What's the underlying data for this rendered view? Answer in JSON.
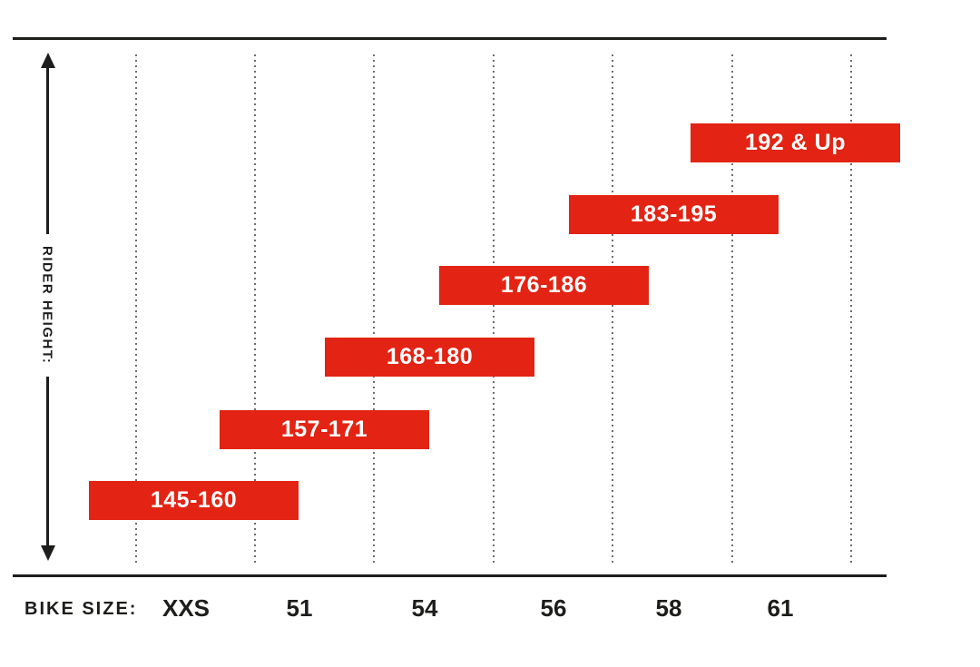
{
  "page": {
    "background": "#ffffff"
  },
  "colors": {
    "bar_red": "#e32313",
    "axis_black": "#1d1d1b",
    "gridline_gray": "#6e6e6e",
    "bar_text_white": "#ffffff"
  },
  "y_axis": {
    "label": "RIDER HEIGHT:",
    "arrow": "double-headed-vertical"
  },
  "x_axis": {
    "label": "BIKE SIZE:"
  },
  "chart_data": {
    "type": "bar",
    "subtype": "horizontal-range-bars-stepped",
    "title": "",
    "xlabel": "BIKE SIZE:",
    "ylabel": "RIDER HEIGHT:",
    "categories": [
      "XXS",
      "51",
      "54",
      "56",
      "58",
      "61"
    ],
    "series": [
      {
        "bike_size": "XXS",
        "rider_height_label": "145-160",
        "range_cm": [
          145,
          160
        ]
      },
      {
        "bike_size": "51",
        "rider_height_label": "157-171",
        "range_cm": [
          157,
          171
        ]
      },
      {
        "bike_size": "54",
        "rider_height_label": "168-180",
        "range_cm": [
          168,
          180
        ]
      },
      {
        "bike_size": "56",
        "rider_height_label": "176-186",
        "range_cm": [
          176,
          186
        ]
      },
      {
        "bike_size": "58",
        "rider_height_label": "183-195",
        "range_cm": [
          183,
          195
        ]
      },
      {
        "bike_size": "61",
        "rider_height_label": "192 & Up",
        "range_cm": [
          192,
          null
        ]
      }
    ],
    "gridlines": "vertical-dotted",
    "gridline_count": 7,
    "legend": "none",
    "bar_color": "#e32313",
    "bar_label_color": "#ffffff"
  }
}
